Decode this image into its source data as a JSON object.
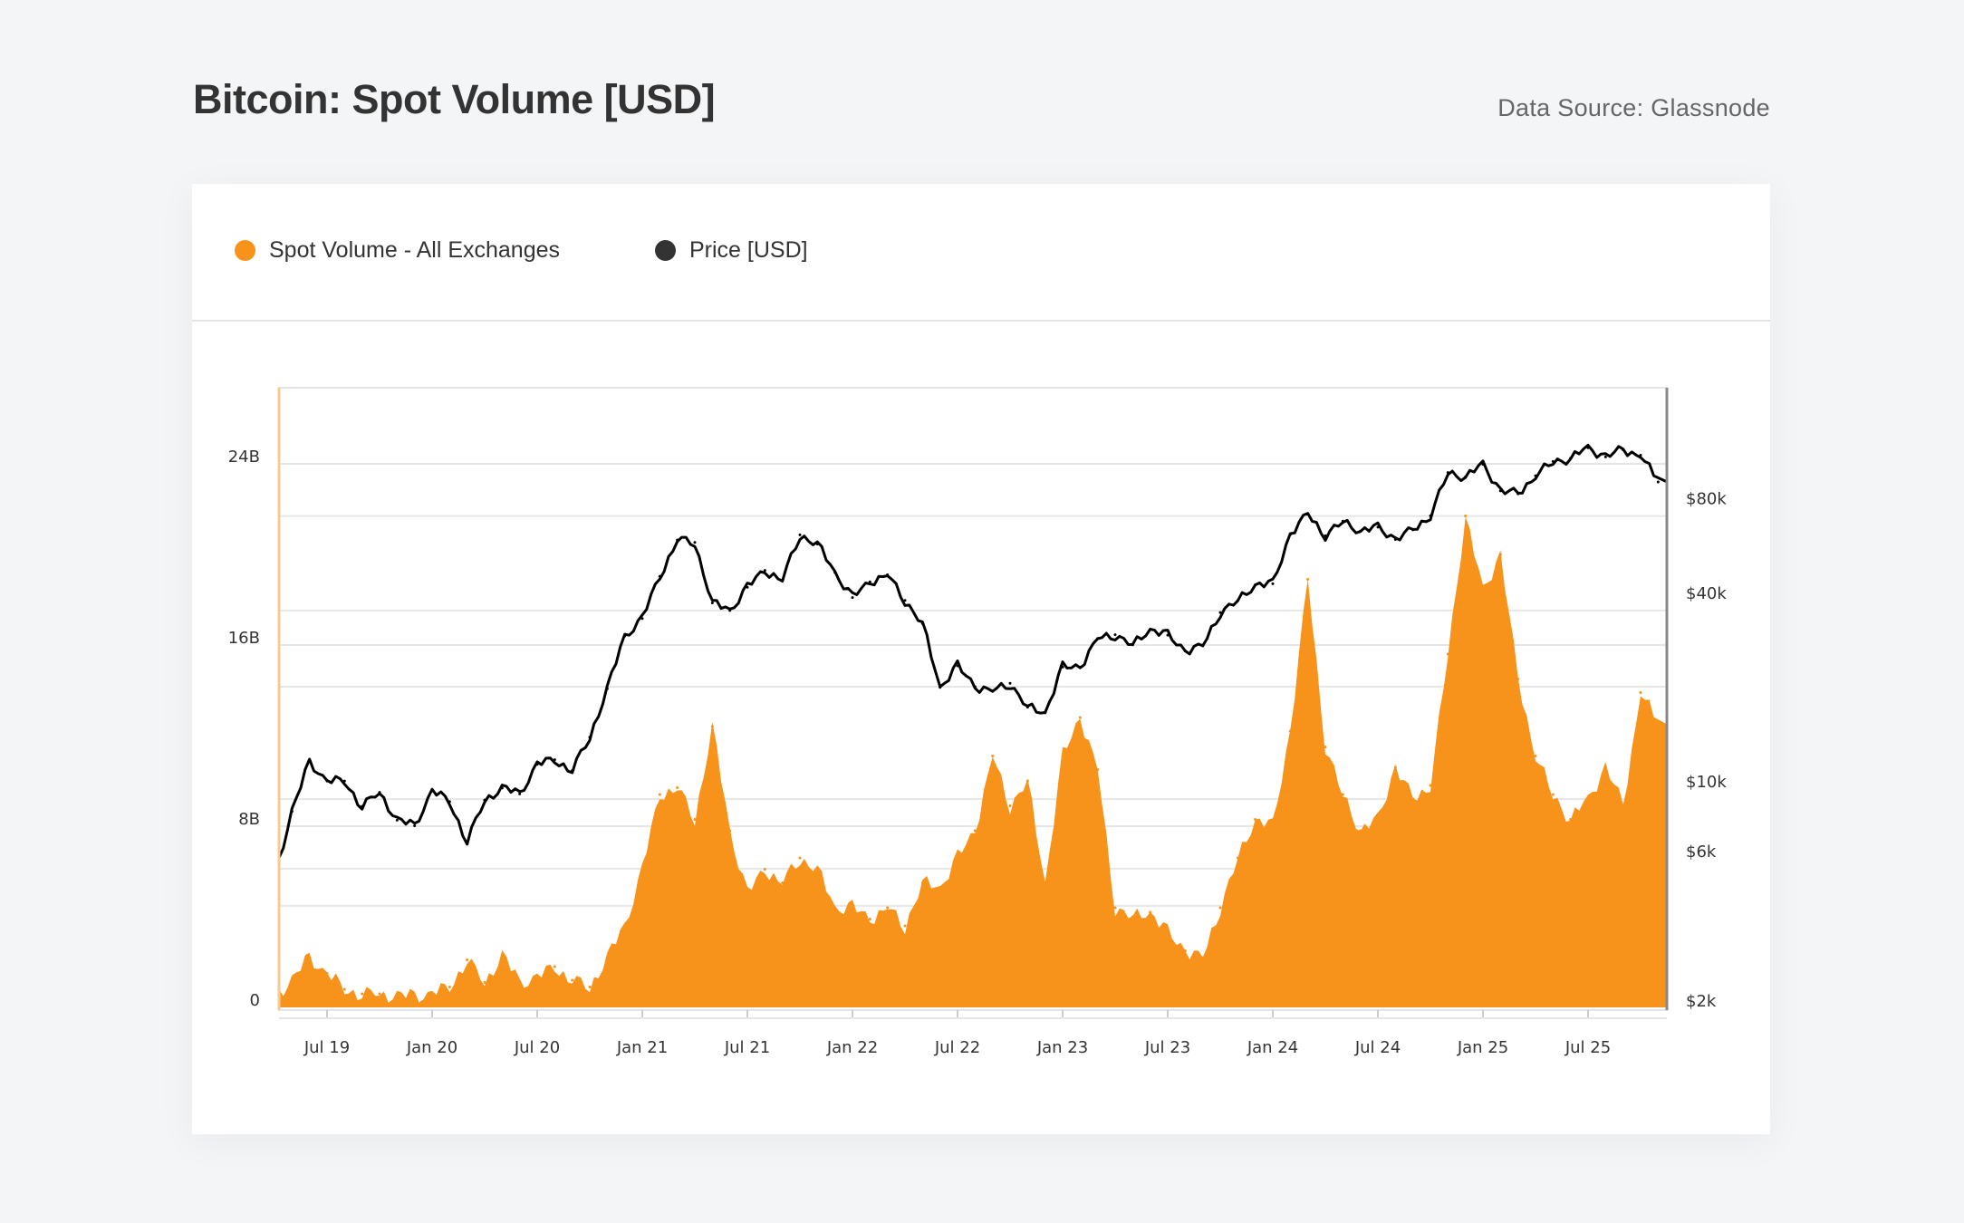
{
  "header": {
    "title": "Bitcoin: Spot Volume [USD]",
    "source": "Data Source: Glassnode"
  },
  "colors": {
    "volume": "#f7931a",
    "price": "#000000",
    "price_legend": "#333333",
    "grid": "#e6e6e6"
  },
  "chart_data": {
    "type": "area+line",
    "title": "Bitcoin: Spot Volume [USD]",
    "legend_position": "top-left",
    "grid": true,
    "legend": [
      {
        "name": "Spot Volume - All Exchanges",
        "color": "#f7931a"
      },
      {
        "name": "Price [USD]",
        "color": "#333333"
      }
    ],
    "x_ticks": [
      "Jul 19",
      "Jan 20",
      "Jul 20",
      "Jan 21",
      "Jul 21",
      "Jan 22",
      "Jul 22",
      "Jan 23",
      "Jul 23",
      "Jan 24",
      "Jul 24",
      "Jan 25",
      "Jul 25"
    ],
    "y_left": {
      "ticks": [
        "0",
        "8B",
        "16B",
        "24B"
      ],
      "tick_values": [
        0,
        8,
        16,
        24
      ],
      "unit": "billion USD",
      "scale": "linear"
    },
    "y_right": {
      "ticks": [
        "$2k",
        "$6k",
        "$10k",
        "$40k",
        "$80k"
      ],
      "tick_values": [
        2000,
        6000,
        10000,
        40000,
        80000
      ],
      "scale": "log"
    },
    "x": [
      "2019-04",
      "2019-05",
      "2019-06",
      "2019-07",
      "2019-08",
      "2019-09",
      "2019-10",
      "2019-11",
      "2019-12",
      "2020-01",
      "2020-02",
      "2020-03",
      "2020-04",
      "2020-05",
      "2020-06",
      "2020-07",
      "2020-08",
      "2020-09",
      "2020-10",
      "2020-11",
      "2020-12",
      "2021-01",
      "2021-02",
      "2021-03",
      "2021-04",
      "2021-05",
      "2021-06",
      "2021-07",
      "2021-08",
      "2021-09",
      "2021-10",
      "2021-11",
      "2021-12",
      "2022-01",
      "2022-02",
      "2022-03",
      "2022-04",
      "2022-05",
      "2022-06",
      "2022-07",
      "2022-08",
      "2022-09",
      "2022-10",
      "2022-11",
      "2022-12",
      "2023-01",
      "2023-02",
      "2023-03",
      "2023-04",
      "2023-05",
      "2023-06",
      "2023-07",
      "2023-08",
      "2023-09",
      "2023-10",
      "2023-11",
      "2023-12",
      "2024-01",
      "2024-02",
      "2024-03",
      "2024-04",
      "2024-05",
      "2024-06",
      "2024-07",
      "2024-08",
      "2024-09",
      "2024-10",
      "2024-11",
      "2024-12",
      "2025-01",
      "2025-02",
      "2025-03",
      "2025-04",
      "2025-05",
      "2025-06",
      "2025-07",
      "2025-08",
      "2025-09",
      "2025-10",
      "2025-11"
    ],
    "series": [
      {
        "name": "Spot Volume - All Exchanges",
        "unit": "billion USD",
        "values": [
          0.5,
          1.2,
          2.2,
          1.5,
          0.8,
          0.6,
          0.6,
          0.5,
          0.5,
          0.6,
          0.9,
          2.1,
          1.1,
          2.3,
          1.1,
          1.3,
          1.8,
          1.2,
          0.9,
          2.2,
          3.6,
          6.1,
          9.4,
          9.7,
          8.3,
          12.4,
          7.8,
          5.0,
          6.1,
          5.5,
          6.6,
          6.1,
          4.4,
          4.4,
          3.9,
          4.4,
          3.6,
          5.5,
          5.3,
          6.6,
          7.8,
          11.1,
          8.9,
          10.0,
          5.5,
          11.1,
          12.8,
          10.5,
          4.4,
          4.0,
          4.2,
          3.3,
          2.5,
          2.2,
          4.4,
          6.6,
          8.3,
          8.0,
          12.2,
          18.9,
          11.5,
          9.4,
          7.8,
          8.3,
          10.6,
          9.2,
          9.8,
          15.6,
          21.7,
          18.4,
          20.0,
          14.5,
          11.1,
          9.4,
          8.3,
          9.2,
          10.6,
          8.9,
          13.9,
          12.5
        ]
      },
      {
        "name": "Price [USD]",
        "unit": "USD",
        "values": [
          5000,
          8000,
          11500,
          10000,
          10000,
          8300,
          9200,
          7500,
          7200,
          9300,
          8600,
          6400,
          8700,
          9500,
          9100,
          11300,
          11700,
          10800,
          13800,
          19700,
          29000,
          33000,
          45000,
          58800,
          57700,
          37000,
          35000,
          41500,
          47000,
          43800,
          61000,
          57000,
          46300,
          38500,
          43200,
          45500,
          37700,
          31800,
          19900,
          23300,
          20000,
          19400,
          20500,
          17200,
          16500,
          23100,
          23100,
          28500,
          29300,
          27200,
          30500,
          29200,
          26000,
          27000,
          34500,
          37700,
          42300,
          42600,
          61200,
          71300,
          60600,
          67500,
          62700,
          64600,
          59000,
          63300,
          70200,
          96400,
          93400,
          102400,
          84300,
          82500,
          94200,
          104600,
          107100,
          115700,
          108200,
          114000,
          109500,
          90000
        ]
      }
    ]
  }
}
